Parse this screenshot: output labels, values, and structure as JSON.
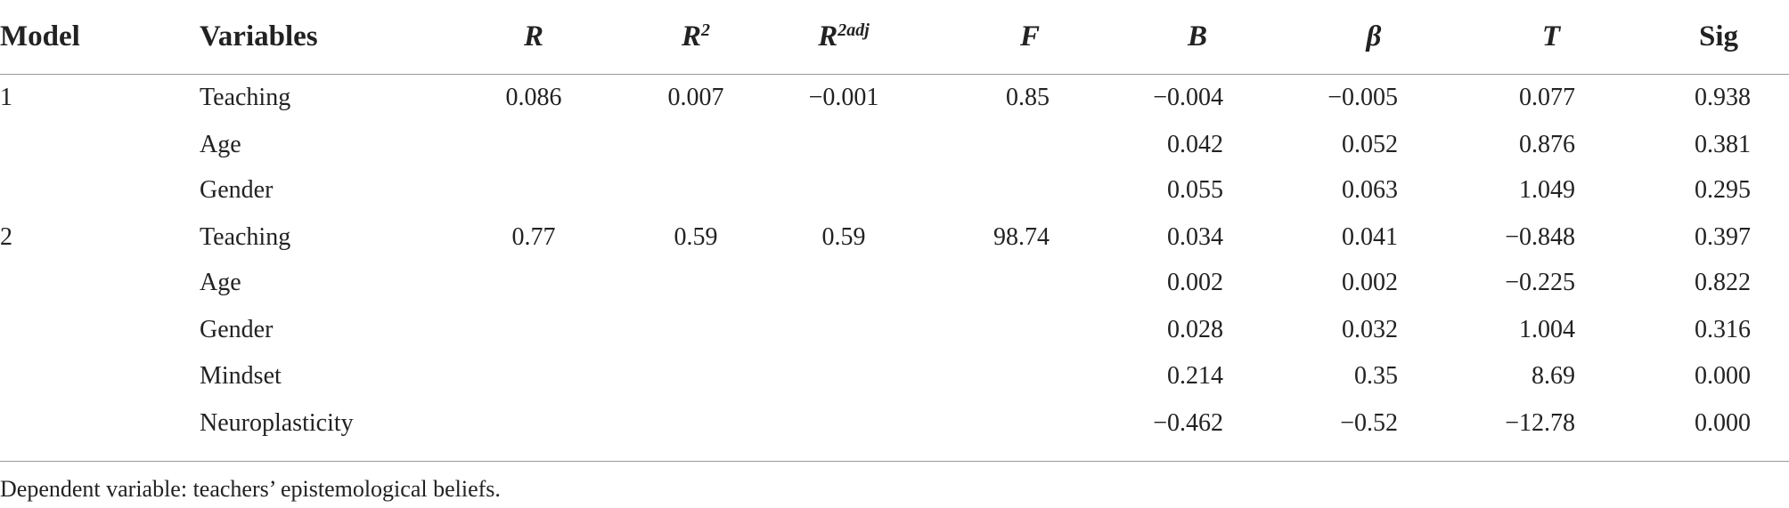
{
  "header": [
    {
      "text": "Model"
    },
    {
      "text": "Variables"
    },
    {
      "text": "R"
    },
    {
      "text": "R",
      "sup": "2"
    },
    {
      "text": "R",
      "sup": "2adj"
    },
    {
      "text": "F"
    },
    {
      "text": "B"
    },
    {
      "text": "β"
    },
    {
      "text": "T"
    },
    {
      "text": "Sig"
    }
  ],
  "rows": [
    [
      "1",
      "Teaching",
      "0.086",
      "0.007",
      "−0.001",
      "0.85",
      "−0.004",
      "−0.005",
      "0.077",
      "0.938"
    ],
    [
      null,
      "Age",
      null,
      null,
      null,
      null,
      "0.042",
      "0.052",
      "0.876",
      "0.381"
    ],
    [
      null,
      "Gender",
      null,
      null,
      null,
      null,
      "0.055",
      "0.063",
      "1.049",
      "0.295"
    ],
    [
      "2",
      "Teaching",
      "0.77",
      "0.59",
      "0.59",
      "98.74",
      "0.034",
      "0.041",
      "−0.848",
      "0.397"
    ],
    [
      null,
      "Age",
      null,
      null,
      null,
      null,
      "0.002",
      "0.002",
      "−0.225",
      "0.822"
    ],
    [
      null,
      "Gender",
      null,
      null,
      null,
      null,
      "0.028",
      "0.032",
      "1.004",
      "0.316"
    ],
    [
      null,
      "Mindset",
      null,
      null,
      null,
      null,
      "0.214",
      "0.35",
      "8.69",
      "0.000"
    ],
    [
      null,
      "Neuroplasticity",
      null,
      null,
      null,
      null,
      "−0.462",
      "−0.52",
      "−12.78",
      "0.000"
    ]
  ],
  "footnote": "Dependent variable: teachers’ epistemological beliefs."
}
